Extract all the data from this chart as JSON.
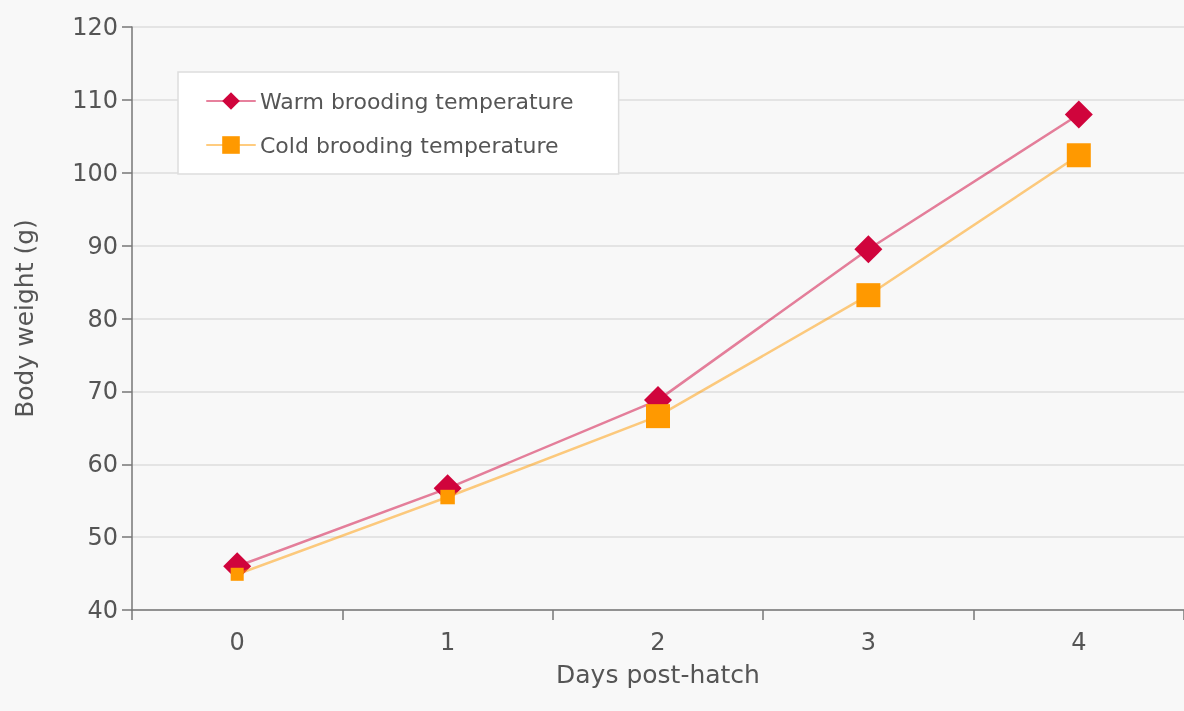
{
  "chart_data": {
    "type": "line",
    "xlabel": "Days post-hatch",
    "ylabel": "Body weight (g)",
    "categories": [
      "0",
      "1",
      "2",
      "3",
      "4"
    ],
    "series": [
      {
        "name": "Warm brooding temperature",
        "color": "#d0043c",
        "marker": "diamond",
        "values": [
          46.0,
          56.7,
          68.8,
          89.5,
          108.0
        ]
      },
      {
        "name": "Cold brooding temperature",
        "color": "#ff9900",
        "marker": "square",
        "values": [
          44.9,
          55.5,
          66.6,
          83.2,
          102.4
        ]
      }
    ],
    "ylim": [
      40,
      120
    ],
    "yticks": [
      40,
      50,
      60,
      70,
      80,
      90,
      100,
      110,
      120
    ],
    "grid": "y",
    "legend": "top left",
    "line_style": "solid"
  }
}
